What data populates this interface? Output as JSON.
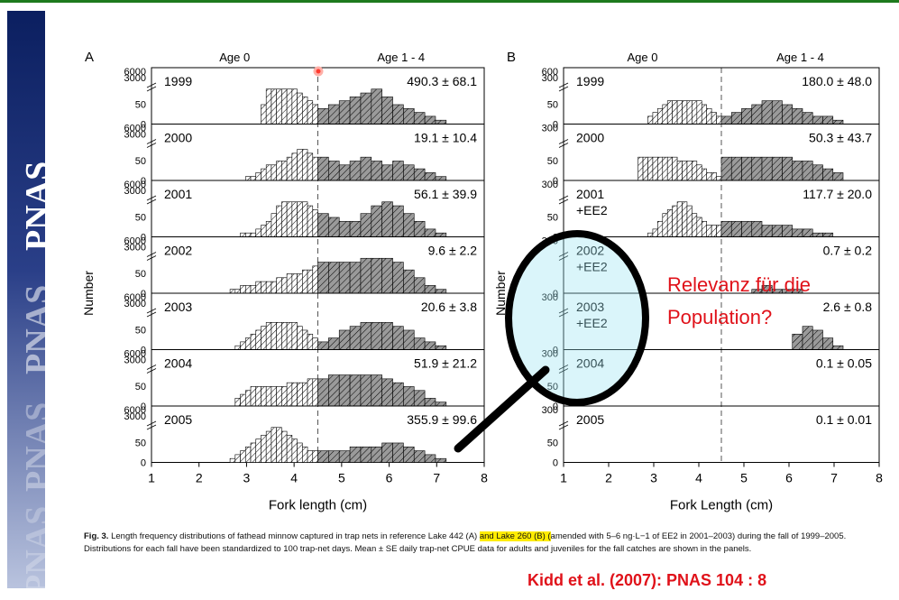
{
  "sidebar_logo": "PNAS",
  "figure": {
    "colors": {
      "age0_fill": "#ffffff",
      "age14_fill": "#9a9a9a",
      "frame": "#000000"
    },
    "panels": [
      {
        "letter": "A",
        "age0_header": "Age 0",
        "age14_header": "Age 1 - 4",
        "xlabel": "Fork length (cm)",
        "ylabel": "Number",
        "rows": [
          {
            "year": "1999",
            "value": "490.3 ± 68.1",
            "ticks": [
              "6000",
              "3000",
              "50",
              "0"
            ]
          },
          {
            "year": "2000",
            "value": "19.1 ± 10.4",
            "ticks": [
              "6000",
              "3000",
              "50",
              "0"
            ]
          },
          {
            "year": "2001",
            "value": "56.1 ± 39.9",
            "ticks": [
              "6000",
              "3000",
              "50",
              "0"
            ]
          },
          {
            "year": "2002",
            "value": "9.6 ± 2.2",
            "ticks": [
              "6000",
              "3000",
              "50",
              "0"
            ]
          },
          {
            "year": "2003",
            "value": "20.6 ± 3.8",
            "ticks": [
              "6000",
              "3000",
              "50",
              "0"
            ]
          },
          {
            "year": "2004",
            "value": "51.9 ± 21.2",
            "ticks": [
              "6000",
              "3000",
              "50",
              "0"
            ]
          },
          {
            "year": "2005",
            "value": "355.9 ± 99.6",
            "ticks": [
              "6000",
              "3000",
              "50",
              "0"
            ]
          }
        ]
      },
      {
        "letter": "B",
        "age0_header": "Age 0",
        "age14_header": "Age 1 - 4",
        "xlabel": "Fork Length (cm)",
        "ylabel": "Number",
        "rows": [
          {
            "year": "1999",
            "sub": "",
            "value": "180.0 ± 48.0",
            "ticks": [
              "600",
              "300",
              "50",
              "0"
            ]
          },
          {
            "year": "2000",
            "sub": "",
            "value": "50.3 ± 43.7",
            "ticks": [
              "300",
              "50",
              "0"
            ]
          },
          {
            "year": "2001",
            "sub": "+EE2",
            "value": "117.7 ± 20.0",
            "ticks": [
              "300",
              "50",
              "0"
            ]
          },
          {
            "year": "2002",
            "sub": "+EE2",
            "value": "0.7 ± 0.2",
            "ticks": [
              "300",
              "0"
            ]
          },
          {
            "year": "2003",
            "sub": "+EE2",
            "value": "2.6 ± 0.8",
            "ticks": [
              "300",
              "0"
            ]
          },
          {
            "year": "2004",
            "sub": "",
            "value": "0.1 ± 0.05",
            "ticks": [
              "300",
              "50",
              "0"
            ]
          },
          {
            "year": "2005",
            "sub": "",
            "value": "0.1 ± 0.01",
            "ticks": [
              "300",
              "50",
              "0"
            ]
          }
        ]
      }
    ],
    "x_ticks": [
      "1",
      "2",
      "3",
      "4",
      "5",
      "6",
      "7",
      "8"
    ]
  },
  "caption": {
    "fig_label": "Fig. 3.",
    "text_a": " Length frequency distributions of fathead minnow captured in trap nets in reference Lake 442 (A) ",
    "text_hl": "and Lake 260 (B) (",
    "text_b": "amended with 5–6 ng·L−1 of EE2 in 2001–2003) during the fall of 1999–2005. Distributions for each fall have been standardized to 100 trap-net days. Mean ± SE daily trap-net CPUE data for adults and juveniles for the fall catches are shown in the panels."
  },
  "annotation": {
    "line1": "Relevanz für die",
    "line2": "Population?"
  },
  "citation": "Kidd et al. (2007): PNAS 104 :  8"
}
